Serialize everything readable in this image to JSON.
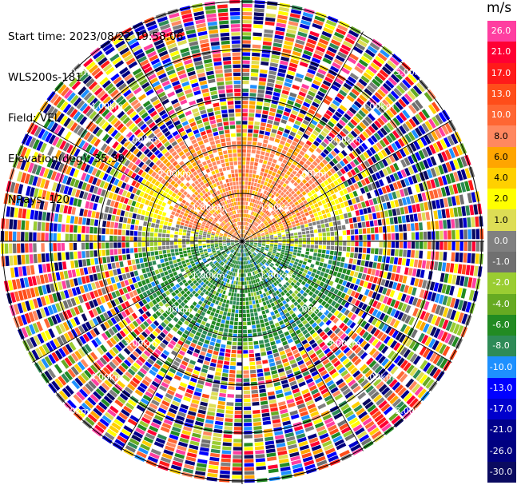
{
  "header": {
    "start_time": "Start time: 2023/08/22 19:58:06",
    "instrument": "WLS200s-181",
    "field": "Field: VEL",
    "elevation": "Elevation(deg): 35.30",
    "nrays": "NRays: 120"
  },
  "colorbar": {
    "unit": "m/s",
    "ticks": [
      "26.0",
      "21.0",
      "17.0",
      "13.0",
      "10.0",
      "8.0",
      "6.0",
      "4.0",
      "2.0",
      "1.0",
      "0.0",
      "-1.0",
      "-2.0",
      "-4.0",
      "-6.0",
      "-8.0",
      "-10.0",
      "-13.0",
      "-17.0",
      "-21.0",
      "-26.0",
      "-30.0"
    ],
    "colors": [
      "#ff3ea0",
      "#ff0033",
      "#ff1a1a",
      "#ff4d1a",
      "#ff6633",
      "#ff8860",
      "#ffa500",
      "#ffd000",
      "#ffff00",
      "#dddd55",
      "#808080",
      "#707070",
      "#9acd32",
      "#66aa22",
      "#228b22",
      "#2e8b57",
      "#1e90ff",
      "#0000ff",
      "#0000cd",
      "#00008b",
      "#000080",
      "#0a0a60"
    ]
  },
  "range_rings": [
    {
      "label": "1.00km"
    },
    {
      "label": "2.00km"
    },
    {
      "label": "3.00km"
    },
    {
      "label": "4.00km"
    },
    {
      "label": "5.00km"
    }
  ]
}
